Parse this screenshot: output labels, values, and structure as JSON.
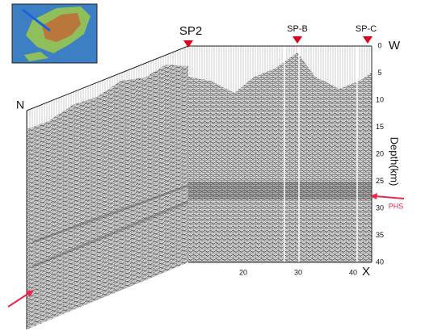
{
  "labels": {
    "sp2": "SP2",
    "sp_b": "SP-B",
    "sp_c": "SP-C",
    "north": "N",
    "west": "W",
    "x": "X",
    "depth_axis": "Depth(km)",
    "phs": "PHS"
  },
  "depth_ticks": [
    0,
    5,
    10,
    15,
    20,
    25,
    30,
    35,
    40
  ],
  "x_ticks": [
    20,
    30,
    40
  ]
}
